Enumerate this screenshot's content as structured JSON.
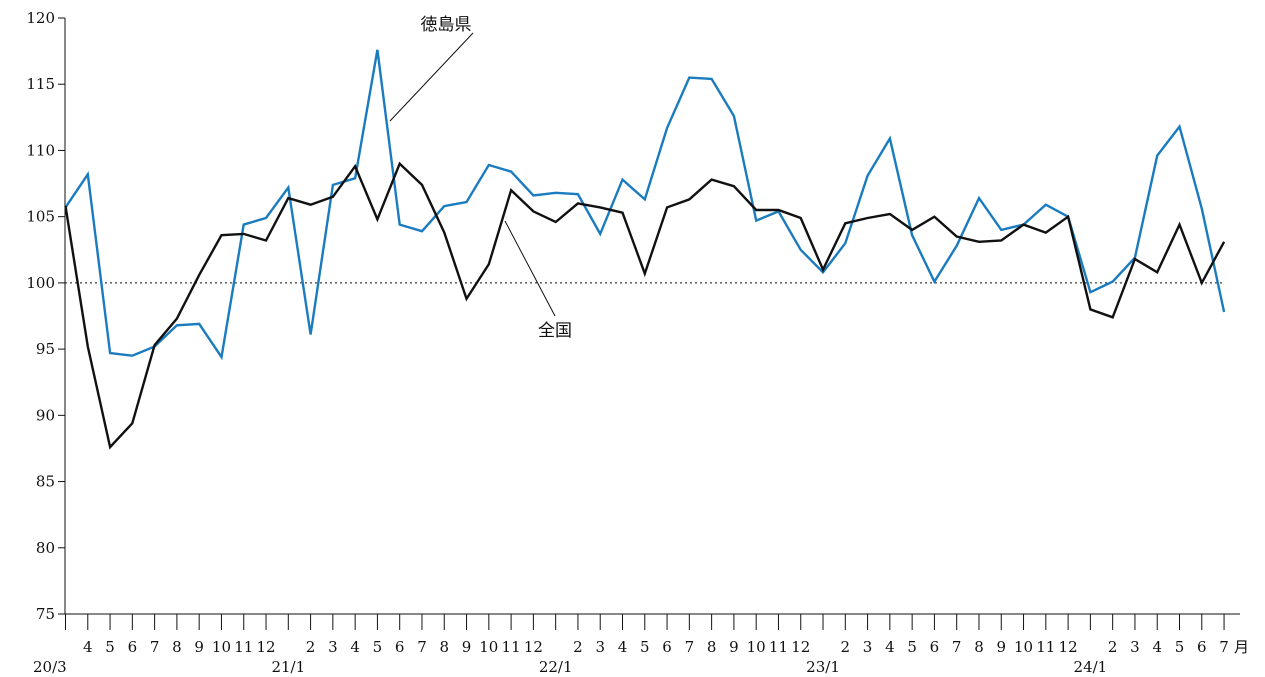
{
  "chart_data": {
    "type": "line",
    "title": "",
    "xlabel": "",
    "ylabel": "",
    "ylim": [
      75,
      120
    ],
    "yticks": [
      "75",
      "80",
      "85",
      "90",
      "95",
      "100",
      "105",
      "110",
      "115",
      "120"
    ],
    "reference_line": 100,
    "x_month_labels": [
      "",
      "4",
      "5",
      "6",
      "7",
      "8",
      "9",
      "10",
      "11",
      "12",
      "",
      "2",
      "3",
      "4",
      "5",
      "6",
      "7",
      "8",
      "9",
      "10",
      "11",
      "12",
      "",
      "2",
      "3",
      "4",
      "5",
      "6",
      "7",
      "8",
      "9",
      "10",
      "11",
      "12",
      "",
      "2",
      "3",
      "4",
      "5",
      "6",
      "7",
      "8",
      "9",
      "10",
      "11",
      "12",
      "",
      "2",
      "3",
      "4",
      "5",
      "6",
      "7"
    ],
    "x_year_labels": [
      "20/3",
      "21/1",
      "22/1",
      "23/1",
      "24/1"
    ],
    "x_unit_label": "月",
    "series": [
      {
        "name": "徳島県",
        "color": "#1a7bbf",
        "values": [
          105.7,
          108.2,
          94.7,
          94.5,
          95.2,
          96.8,
          96.9,
          94.4,
          104.4,
          104.9,
          107.2,
          96.1,
          107.4,
          107.9,
          117.6,
          104.4,
          103.9,
          105.8,
          106.1,
          108.9,
          108.4,
          106.6,
          106.8,
          106.7,
          103.7,
          107.8,
          106.3,
          111.7,
          115.5,
          115.4,
          112.6,
          104.7,
          105.4,
          102.5,
          100.8,
          103.0,
          108.1,
          110.9,
          103.6,
          100.1,
          102.8,
          106.4,
          104.0,
          104.4,
          105.9,
          105.0,
          99.3,
          100.1,
          101.9,
          109.6,
          111.8,
          105.6,
          97.8
        ]
      },
      {
        "name": "全国",
        "color": "#111111",
        "values": [
          105.8,
          95.2,
          87.6,
          89.4,
          95.3,
          97.3,
          100.6,
          103.6,
          103.7,
          103.2,
          106.4,
          105.9,
          106.5,
          108.8,
          104.8,
          109.0,
          107.4,
          103.8,
          98.8,
          101.4,
          107.0,
          105.4,
          104.6,
          106.0,
          105.7,
          105.3,
          100.7,
          105.7,
          106.3,
          107.8,
          107.3,
          105.5,
          105.5,
          104.9,
          101.0,
          104.5,
          104.9,
          105.2,
          104.0,
          105.0,
          103.5,
          103.1,
          103.2,
          104.4,
          103.8,
          105.0,
          98.0,
          97.4,
          101.8,
          100.8,
          104.4,
          100.0,
          103.1
        ]
      }
    ],
    "annotations": [
      {
        "text": "徳島県",
        "series": "徳島県"
      },
      {
        "text": "全国",
        "series": "全国"
      }
    ]
  }
}
